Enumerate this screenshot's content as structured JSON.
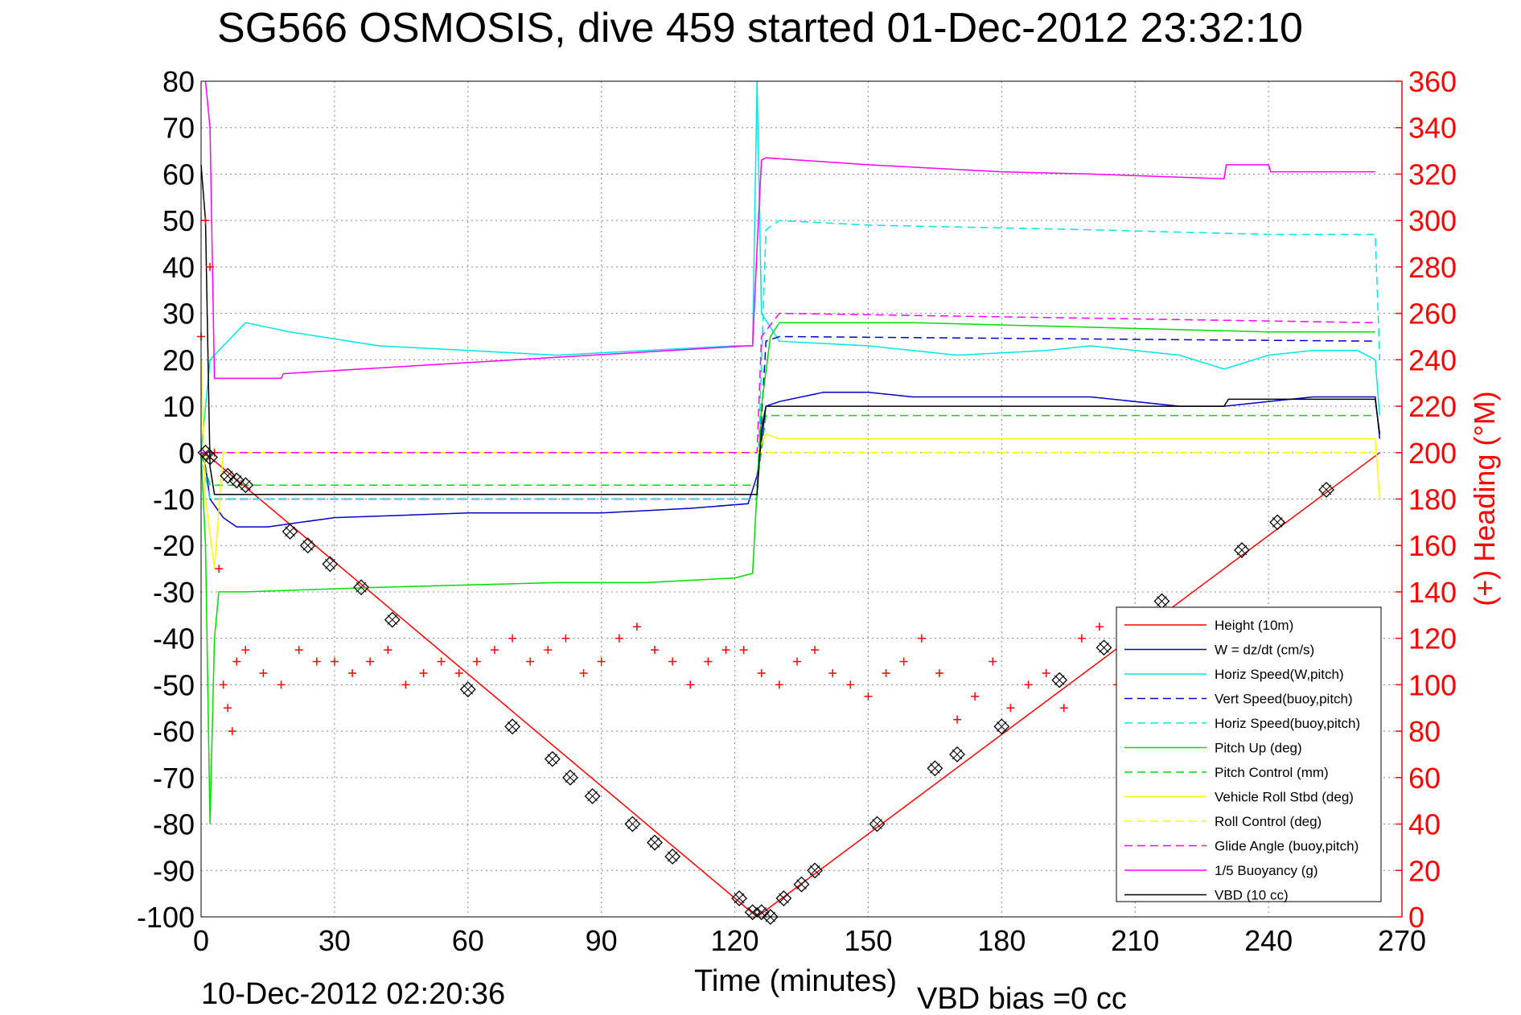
{
  "title": "SG566 OSMOSIS, dive 459 started 01-Dec-2012 23:32:10",
  "footer": {
    "timestamp": "10-Dec-2012 02:20:36",
    "vbd_bias": "VBD bias =0 cc"
  },
  "colors": {
    "red": "#ff0000",
    "blue": "#0000cc",
    "cyan": "#00e5e5",
    "green": "#00dd00",
    "yellow": "#ffff00",
    "magenta": "#ff00ff",
    "black": "#000000",
    "grid": "#888888"
  },
  "chart_data": {
    "type": "line",
    "title": "SG566 OSMOSIS, dive 459 started 01-Dec-2012 23:32:10",
    "xlabel": "Time (minutes)",
    "ylabel_right": "(+) Heading (°M)",
    "xlim": [
      0,
      270
    ],
    "ylim": [
      -100,
      80
    ],
    "ylim_right": [
      0,
      360
    ],
    "xticks": [
      "0",
      "30",
      "60",
      "90",
      "120",
      "150",
      "180",
      "210",
      "240",
      "270"
    ],
    "yticks": [
      "80",
      "70",
      "60",
      "50",
      "40",
      "30",
      "20",
      "10",
      "0",
      "-10",
      "-20",
      "-30",
      "-40",
      "-50",
      "-60",
      "-70",
      "-80",
      "-90",
      "-100"
    ],
    "yticks_right": [
      "360",
      "340",
      "320",
      "300",
      "280",
      "260",
      "240",
      "220",
      "200",
      "180",
      "160",
      "140",
      "120",
      "100",
      "80",
      "60",
      "40",
      "20",
      "0"
    ],
    "grid": true,
    "legend_position": "lower-right",
    "legend": [
      {
        "label": "Height (10m)",
        "color": "#ff0000",
        "dash": "solid"
      },
      {
        "label": "W = dz/dt (cm/s)",
        "color": "#0000cc",
        "dash": "solid"
      },
      {
        "label": "Horiz Speed(W,pitch)",
        "color": "#00e5e5",
        "dash": "solid"
      },
      {
        "label": "Vert Speed(buoy,pitch)",
        "color": "#0000cc",
        "dash": "dashed"
      },
      {
        "label": "Horiz Speed(buoy,pitch)",
        "color": "#00e5e5",
        "dash": "dashed"
      },
      {
        "label": "Pitch Up (deg)",
        "color": "#00dd00",
        "dash": "solid"
      },
      {
        "label": "Pitch Control (mm)",
        "color": "#00dd00",
        "dash": "dashed"
      },
      {
        "label": "Vehicle Roll Stbd (deg)",
        "color": "#ffff00",
        "dash": "solid"
      },
      {
        "label": "Roll Control (deg)",
        "color": "#ffff00",
        "dash": "dashed"
      },
      {
        "label": "Glide Angle (buoy,pitch)",
        "color": "#ff00ff",
        "dash": "dashed"
      },
      {
        "label": "1/5 Buoyancy (g)",
        "color": "#ff00ff",
        "dash": "solid"
      },
      {
        "label": "VBD (10 cc)",
        "color": "#000000",
        "dash": "solid"
      }
    ],
    "series": [
      {
        "name": "Height (10m)",
        "color": "#ff0000",
        "dash": "solid",
        "x": [
          0,
          2,
          125,
          265
        ],
        "y": [
          0,
          -1,
          -100,
          0
        ]
      },
      {
        "name": "W = dz/dt (cm/s)",
        "color": "#0000cc",
        "dash": "solid",
        "x": [
          0,
          1,
          2,
          5,
          8,
          15,
          30,
          60,
          90,
          110,
          123,
          125,
          127,
          130,
          140,
          150,
          160,
          180,
          200,
          220,
          230,
          240,
          250,
          260,
          264,
          265
        ],
        "y": [
          0,
          -3,
          -10,
          -14,
          -16,
          -16,
          -14,
          -13,
          -13,
          -12,
          -11,
          -5,
          10,
          11,
          13,
          13,
          12,
          12,
          12,
          10,
          10,
          11,
          12,
          12,
          12,
          3
        ]
      },
      {
        "name": "Horiz Speed(W,pitch)",
        "color": "#00e5e5",
        "dash": "solid",
        "x": [
          0,
          2,
          5,
          10,
          20,
          40,
          60,
          80,
          100,
          120,
          124,
          125,
          126,
          128,
          130,
          150,
          170,
          190,
          200,
          210,
          220,
          230,
          240,
          250,
          260,
          264,
          265
        ],
        "y": [
          0,
          20,
          23,
          28,
          26,
          23,
          22,
          21,
          22,
          23,
          23,
          80,
          30,
          27,
          24,
          23,
          21,
          22,
          23,
          22,
          21,
          18,
          21,
          22,
          22,
          20,
          8
        ]
      },
      {
        "name": "Vert Speed(buoy,pitch)",
        "color": "#0000cc",
        "dash": "dashed",
        "x": [
          0,
          2,
          125,
          127,
          130,
          264
        ],
        "y": [
          0,
          -10,
          -10,
          24,
          25,
          24
        ]
      },
      {
        "name": "Horiz Speed(buoy,pitch)",
        "color": "#00e5e5",
        "dash": "dashed",
        "x": [
          0,
          2,
          125,
          127,
          130,
          150,
          200,
          240,
          264,
          265
        ],
        "y": [
          0,
          -10,
          -10,
          48,
          50,
          49,
          48,
          47,
          47,
          20
        ]
      },
      {
        "name": "Pitch Up (deg)",
        "color": "#00dd00",
        "dash": "solid",
        "x": [
          0,
          1,
          2,
          3,
          4,
          10,
          40,
          80,
          100,
          120,
          124,
          126,
          128,
          130,
          160,
          200,
          240,
          264
        ],
        "y": [
          0,
          -20,
          -80,
          -40,
          -30,
          -30,
          -29,
          -28,
          -28,
          -27,
          -26,
          10,
          25,
          28,
          28,
          27,
          26,
          26
        ]
      },
      {
        "name": "Pitch Control (mm)",
        "color": "#00dd00",
        "dash": "dashed",
        "x": [
          0,
          2,
          125,
          127,
          264
        ],
        "y": [
          0,
          -7,
          -7,
          8,
          8
        ]
      },
      {
        "name": "Vehicle Roll Stbd (deg)",
        "color": "#ffff00",
        "dash": "solid",
        "x": [
          0,
          1,
          3,
          5,
          124,
          125,
          127,
          130,
          200,
          250,
          264,
          265
        ],
        "y": [
          20,
          -10,
          -25,
          0,
          0,
          0,
          4,
          3,
          3,
          3,
          3,
          -10
        ]
      },
      {
        "name": "Roll Control (deg)",
        "color": "#ffff00",
        "dash": "dashed",
        "x": [
          0,
          125,
          264
        ],
        "y": [
          0,
          0,
          0
        ]
      },
      {
        "name": "Glide Angle (buoy,pitch)",
        "color": "#ff00ff",
        "dash": "dashed",
        "x": [
          0,
          2,
          124,
          125,
          126,
          130,
          264
        ],
        "y": [
          0,
          0,
          0,
          0,
          25,
          30,
          28
        ]
      },
      {
        "name": "1/5 Buoyancy (g)",
        "color": "#ff00ff",
        "dash": "solid",
        "x": [
          1,
          2,
          3,
          18,
          18.5,
          123,
          124,
          125,
          126,
          127,
          150,
          180,
          200,
          230,
          230.5,
          240,
          240.5,
          264
        ],
        "y": [
          80,
          70,
          16,
          16,
          17,
          23,
          23,
          44,
          63,
          63.5,
          62,
          60.5,
          60,
          59,
          62,
          62,
          60.5,
          60.5
        ]
      },
      {
        "name": "VBD (10 cc)",
        "color": "#000000",
        "dash": "solid",
        "x": [
          0,
          1,
          2,
          3,
          125,
          126,
          127,
          230,
          231,
          264,
          265
        ],
        "y": [
          62,
          50,
          -3,
          -9,
          -9,
          5,
          10,
          10,
          11.5,
          11.5,
          4
        ]
      }
    ],
    "heading_points": {
      "color": "#ff0000",
      "marker": "+",
      "axis": "right",
      "x": [
        0,
        1,
        2,
        3,
        4,
        5,
        6,
        7,
        8,
        10,
        14,
        18,
        22,
        26,
        30,
        34,
        38,
        42,
        46,
        50,
        54,
        58,
        62,
        66,
        70,
        74,
        78,
        82,
        86,
        90,
        94,
        98,
        102,
        106,
        110,
        114,
        118,
        122,
        126,
        130,
        134,
        138,
        142,
        146,
        150,
        154,
        158,
        162,
        166,
        170,
        174,
        178,
        182,
        186,
        190,
        194,
        198,
        202,
        206,
        210
      ],
      "y": [
        250,
        300,
        280,
        200,
        150,
        100,
        90,
        80,
        110,
        115,
        105,
        100,
        115,
        110,
        110,
        105,
        110,
        115,
        100,
        105,
        110,
        105,
        110,
        115,
        120,
        110,
        115,
        120,
        105,
        110,
        120,
        125,
        115,
        110,
        100,
        110,
        115,
        115,
        105,
        100,
        110,
        115,
        105,
        100,
        95,
        105,
        110,
        120,
        105,
        85,
        95,
        110,
        90,
        100,
        105,
        90,
        120,
        125,
        100,
        95
      ]
    },
    "markers": {
      "symbol": "diamond-x",
      "color": "#000000",
      "x": [
        1,
        2,
        6,
        8,
        10,
        20,
        24,
        29,
        36,
        43,
        60,
        70,
        79,
        83,
        88,
        97,
        102,
        106,
        121,
        124,
        126,
        128,
        131,
        135,
        138,
        152,
        165,
        170,
        180,
        193,
        203,
        216,
        234,
        242,
        253
      ],
      "y": [
        0,
        -1,
        -5,
        -6,
        -7,
        -17,
        -20,
        -24,
        -29,
        -36,
        -51,
        -59,
        -66,
        -70,
        -74,
        -80,
        -84,
        -87,
        -96,
        -99,
        -99,
        -100,
        -96,
        -93,
        -90,
        -80,
        -68,
        -65,
        -59,
        -49,
        -42,
        -32,
        -21,
        -15,
        -8
      ]
    }
  }
}
